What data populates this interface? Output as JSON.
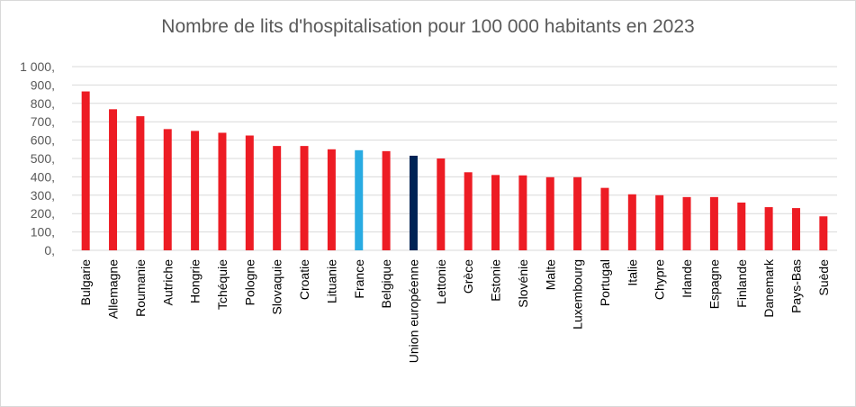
{
  "chart_data": {
    "type": "bar",
    "title": "Nombre de lits d'hospitalisation pour 100 000 habitants en 2023",
    "xlabel": "",
    "ylabel": "",
    "ylim": [
      0,
      1000
    ],
    "y_ticks": [
      0,
      100,
      200,
      300,
      400,
      500,
      600,
      700,
      800,
      900,
      1000
    ],
    "y_tick_labels": [
      "0,",
      "100,",
      "200,",
      "300,",
      "400,",
      "500,",
      "600,",
      "700,",
      "800,",
      "900,",
      "1 000,"
    ],
    "grid": true,
    "legend": "none",
    "categories": [
      "Bulgarie",
      "Allemagne",
      "Roumanie",
      "Autriche",
      "Hongrie",
      "Tchéquie",
      "Pologne",
      "Slovaquie",
      "Croatie",
      "Lituanie",
      "France",
      "Belgique",
      "Union européenne",
      "Lettonie",
      "Grèce",
      "Estonie",
      "Slovénie",
      "Malte",
      "Luxembourg",
      "Portugal",
      "Italie",
      "Chypre",
      "Irlande",
      "Espagne",
      "Finlande",
      "Danemark",
      "Pays-Bas",
      "Suède"
    ],
    "values": [
      865,
      768,
      730,
      660,
      650,
      640,
      625,
      568,
      568,
      550,
      545,
      540,
      515,
      500,
      425,
      410,
      408,
      398,
      398,
      340,
      305,
      300,
      290,
      290,
      260,
      235,
      230,
      185
    ],
    "colors": {
      "default": "#ed1c24",
      "France": "#29abe2",
      "Union européenne": "#002355"
    },
    "gridline_color": "#d9d9d9"
  }
}
